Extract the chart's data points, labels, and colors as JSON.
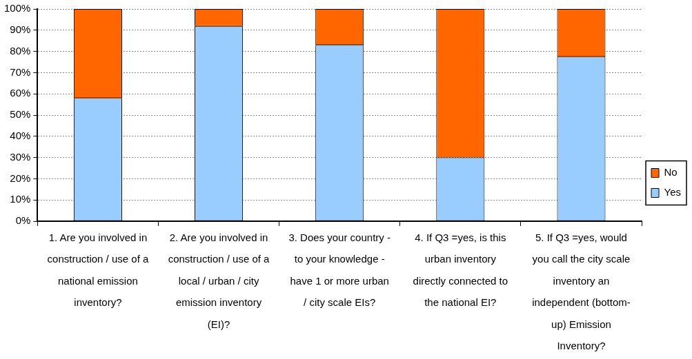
{
  "chart_data": {
    "type": "bar",
    "stacked": true,
    "categories": [
      "1. Are you involved in construction / use of a national emission inventory?",
      "2. Are you involved in construction / use of a local / urban / city emission inventory (EI)?",
      "3. Does your country - to your knowledge - have 1 or more urban / city scale EIs?",
      "4. If Q3 =yes, is this urban inventory directly connected to the national EI?",
      "5. If Q3 =yes, would you call the city scale inventory an independent (bottom-up) Emission Inventory?"
    ],
    "series": [
      {
        "name": "Yes",
        "color": "#99ccff",
        "values": [
          58,
          92,
          83,
          30,
          77.5
        ]
      },
      {
        "name": "No",
        "color": "#ff6600",
        "values": [
          42,
          8,
          17,
          70,
          22.5
        ]
      }
    ],
    "ylim": [
      0,
      100
    ],
    "yticks": [
      {
        "value": 0,
        "label": "0%"
      },
      {
        "value": 10,
        "label": "10%"
      },
      {
        "value": 20,
        "label": "20%"
      },
      {
        "value": 30,
        "label": "30%"
      },
      {
        "value": 40,
        "label": "40%"
      },
      {
        "value": 50,
        "label": "50%"
      },
      {
        "value": 60,
        "label": "60%"
      },
      {
        "value": 70,
        "label": "70%"
      },
      {
        "value": 80,
        "label": "80%"
      },
      {
        "value": 90,
        "label": "90%"
      },
      {
        "value": 100,
        "label": "100%"
      }
    ],
    "grid": "y",
    "legend": "right"
  }
}
